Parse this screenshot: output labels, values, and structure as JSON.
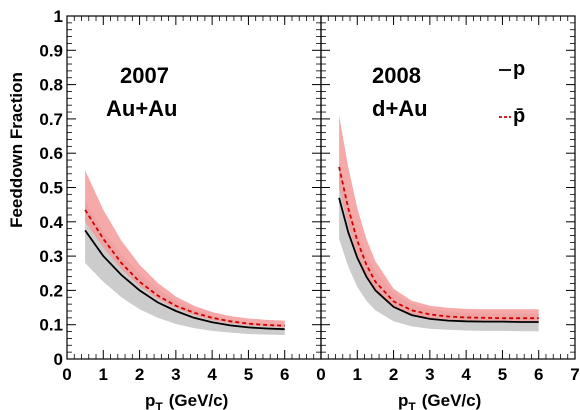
{
  "chart_data": [
    {
      "type": "line",
      "panel_labels": [
        "2007",
        "Au+Au"
      ],
      "ylabel": "Feeddown Fraction",
      "xlabel_main": "p",
      "xlabel_sub": "T",
      "xlabel_unit": "(GeV/c)",
      "xlim": [
        0,
        7
      ],
      "ylim": [
        0,
        1
      ],
      "x_ticks": [
        "0",
        "1",
        "2",
        "3",
        "4",
        "5",
        "6"
      ],
      "y_ticks": [
        "0",
        "0.1",
        "0.2",
        "0.3",
        "0.4",
        "0.5",
        "0.6",
        "0.7",
        "0.8",
        "0.9",
        "1"
      ],
      "x": [
        0.5,
        1,
        1.5,
        2,
        2.5,
        3,
        3.5,
        4,
        4.5,
        5,
        5.5,
        6
      ],
      "series": [
        {
          "name": "p",
          "color": "#000000",
          "line_style": "solid",
          "band_color": "#cccccc",
          "values": [
            0.375,
            0.3,
            0.245,
            0.2,
            0.165,
            0.14,
            0.12,
            0.107,
            0.098,
            0.092,
            0.089,
            0.087
          ],
          "band_upper": [
            0.46,
            0.37,
            0.305,
            0.25,
            0.205,
            0.17,
            0.145,
            0.127,
            0.115,
            0.108,
            0.103,
            0.1
          ],
          "band_lower": [
            0.28,
            0.225,
            0.18,
            0.145,
            0.12,
            0.102,
            0.09,
            0.082,
            0.077,
            0.073,
            0.071,
            0.07
          ]
        },
        {
          "name": "p̄",
          "color": "#cc0000",
          "line_style": "dashed",
          "band_color": "#f49a9a",
          "values": [
            0.435,
            0.35,
            0.28,
            0.225,
            0.185,
            0.155,
            0.135,
            0.12,
            0.11,
            0.103,
            0.099,
            0.097
          ],
          "band_upper": [
            0.55,
            0.435,
            0.345,
            0.275,
            0.222,
            0.182,
            0.155,
            0.137,
            0.125,
            0.118,
            0.114,
            0.112
          ],
          "band_lower": [
            0.4,
            0.325,
            0.262,
            0.212,
            0.175,
            0.148,
            0.128,
            0.113,
            0.104,
            0.098,
            0.095,
            0.093
          ]
        }
      ]
    },
    {
      "type": "line",
      "panel_labels": [
        "2008",
        "d+Au"
      ],
      "xlabel_main": "p",
      "xlabel_sub": "T",
      "xlabel_unit": "(GeV/c)",
      "xlim": [
        0,
        7
      ],
      "ylim": [
        0,
        1
      ],
      "x_ticks": [
        "0",
        "1",
        "2",
        "3",
        "4",
        "5",
        "6",
        "7"
      ],
      "x": [
        0.5,
        0.75,
        1,
        1.25,
        1.5,
        2,
        2.5,
        3,
        3.5,
        4,
        4.5,
        5,
        5.5,
        6
      ],
      "legend": {
        "placement": "top-right",
        "entries": [
          "p",
          "p̄"
        ]
      },
      "series": [
        {
          "name": "p",
          "color": "#000000",
          "line_style": "solid",
          "band_color": "#cccccc",
          "values": [
            0.47,
            0.37,
            0.295,
            0.24,
            0.2,
            0.152,
            0.128,
            0.117,
            0.112,
            0.11,
            0.109,
            0.109,
            0.108,
            0.108
          ],
          "band_upper": [
            0.57,
            0.46,
            0.37,
            0.305,
            0.255,
            0.192,
            0.16,
            0.145,
            0.138,
            0.135,
            0.133,
            0.132,
            0.132,
            0.132
          ],
          "band_lower": [
            0.35,
            0.27,
            0.21,
            0.17,
            0.142,
            0.11,
            0.095,
            0.088,
            0.085,
            0.083,
            0.082,
            0.082,
            0.081,
            0.081
          ]
        },
        {
          "name": "p̄",
          "color": "#cc0000",
          "line_style": "dashed",
          "band_color": "#f49a9a",
          "values": [
            0.56,
            0.44,
            0.345,
            0.275,
            0.225,
            0.168,
            0.142,
            0.13,
            0.124,
            0.121,
            0.12,
            0.119,
            0.119,
            0.119
          ],
          "band_upper": [
            0.71,
            0.56,
            0.44,
            0.35,
            0.285,
            0.205,
            0.17,
            0.155,
            0.149,
            0.146,
            0.145,
            0.145,
            0.145,
            0.145
          ],
          "band_lower": [
            0.5,
            0.39,
            0.305,
            0.245,
            0.2,
            0.152,
            0.13,
            0.12,
            0.115,
            0.113,
            0.112,
            0.111,
            0.111,
            0.111
          ]
        }
      ]
    }
  ]
}
